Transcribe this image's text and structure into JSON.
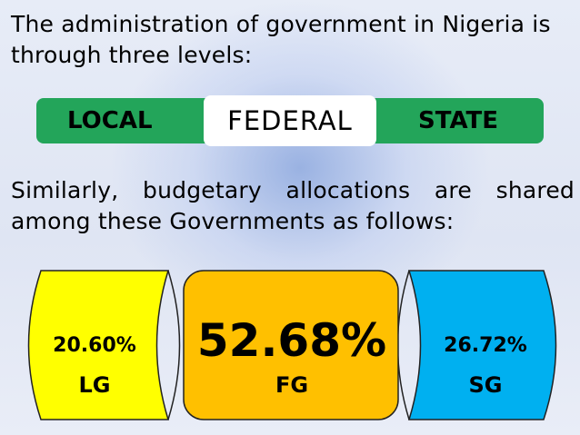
{
  "intro_text": "The administration of government in Nigeria is through three levels:",
  "levels": {
    "local": "LOCAL",
    "federal": "FEDERAL",
    "state": "STATE"
  },
  "allocation_text": "Similarly, budgetary allocations are shared among these Governments as follows:",
  "shares": {
    "lg": {
      "percent": "20.60%",
      "abbr": "LG"
    },
    "fg": {
      "percent": "52.68%",
      "abbr": "FG"
    },
    "sg": {
      "percent": "26.72%",
      "abbr": "SG"
    }
  },
  "colors": {
    "bar": "#23a55a",
    "lg": "#ffff00",
    "fg": "#ffc000",
    "sg": "#00b0f0"
  }
}
